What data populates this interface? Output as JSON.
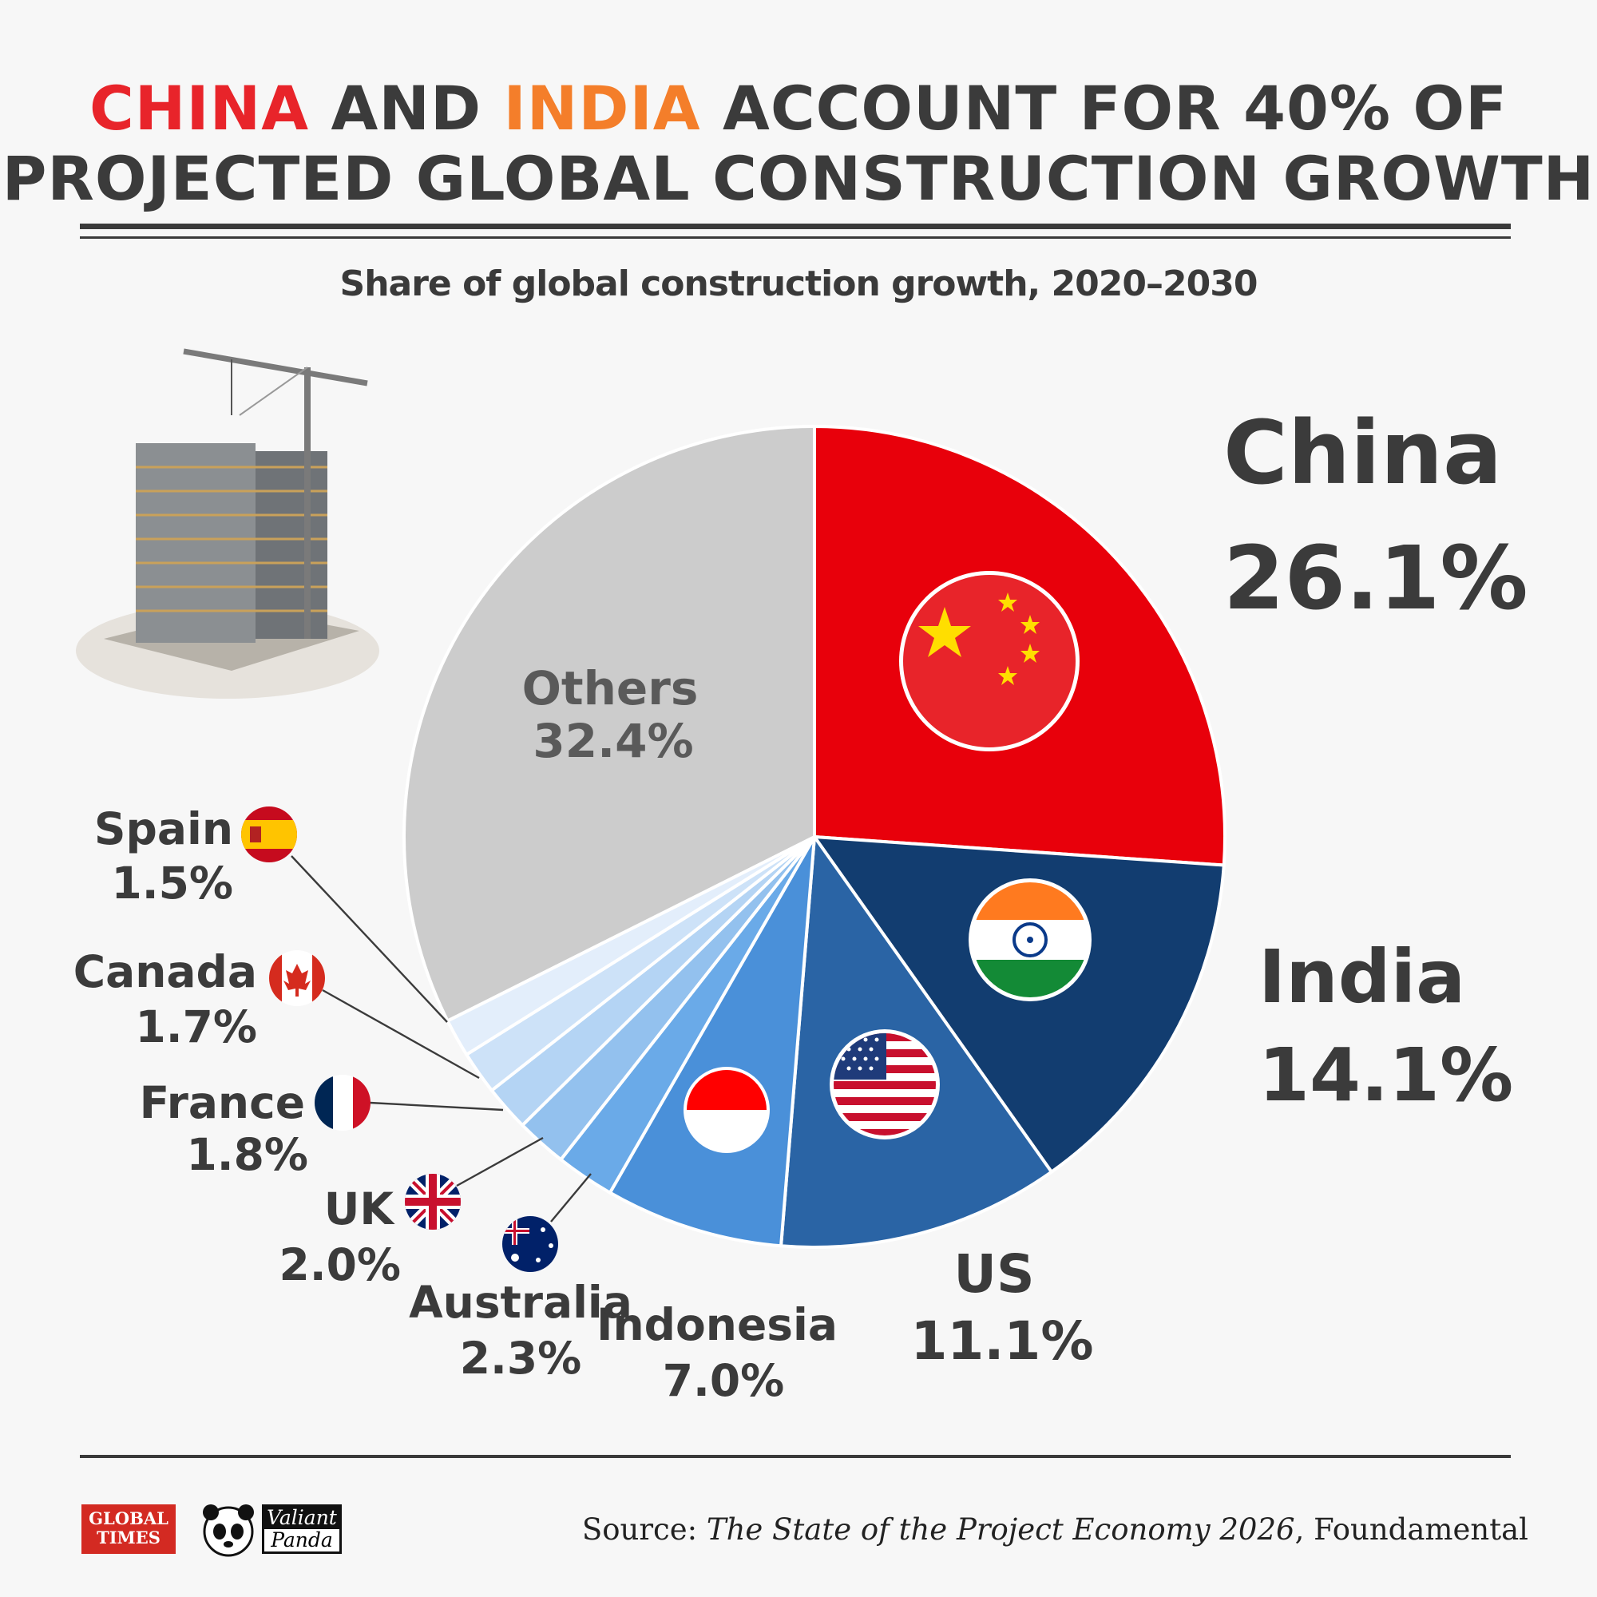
{
  "title": {
    "highlight1": "CHINA",
    "word_and": "AND",
    "highlight2": "INDIA",
    "line1_rest": "ACCOUNT FOR 40% OF",
    "line2": "PROJECTED GLOBAL CONSTRUCTION GROWTH"
  },
  "subtitle": "Share of global construction growth, 2020–2030",
  "source": {
    "prefix": "Source: ",
    "publication": "The State of the Project Economy 2026",
    "suffix": ", Foundamental"
  },
  "logos": {
    "global_times_line1": "GLOBAL",
    "global_times_line2": "TIMES",
    "valiant_panda_line1": "Valiant",
    "valiant_panda_line2": "Panda"
  },
  "chart_data": {
    "type": "pie",
    "title": "Share of global construction growth, 2020–2030",
    "unit": "%",
    "start_angle_deg": 0,
    "direction": "clockwise",
    "slices": [
      {
        "label": "China",
        "value": 26.1,
        "value_label": "26.1%",
        "color": "#e8000b",
        "flag": "china-flag-icon"
      },
      {
        "label": "India",
        "value": 14.1,
        "value_label": "14.1%",
        "color": "#123d70",
        "flag": "india-flag-icon"
      },
      {
        "label": "US",
        "value": 11.1,
        "value_label": "11.1%",
        "color": "#2a64a5",
        "flag": "us-flag-icon"
      },
      {
        "label": "Indonesia",
        "value": 7.0,
        "value_label": "7.0%",
        "color": "#4a90d9",
        "flag": "indonesia-flag-icon"
      },
      {
        "label": "Australia",
        "value": 2.3,
        "value_label": "2.3%",
        "color": "#6aaae8",
        "flag": "australia-flag-icon"
      },
      {
        "label": "UK",
        "value": 2.0,
        "value_label": "2.0%",
        "color": "#93c1ee",
        "flag": "uk-flag-icon"
      },
      {
        "label": "France",
        "value": 1.8,
        "value_label": "1.8%",
        "color": "#b4d4f4",
        "flag": "france-flag-icon"
      },
      {
        "label": "Canada",
        "value": 1.7,
        "value_label": "1.7%",
        "color": "#cde2f8",
        "flag": "canada-flag-icon"
      },
      {
        "label": "Spain",
        "value": 1.5,
        "value_label": "1.5%",
        "color": "#e3eefb",
        "flag": "spain-flag-icon"
      },
      {
        "label": "Others",
        "value": 32.4,
        "value_label": "32.4%",
        "color": "#cccccc"
      }
    ]
  }
}
